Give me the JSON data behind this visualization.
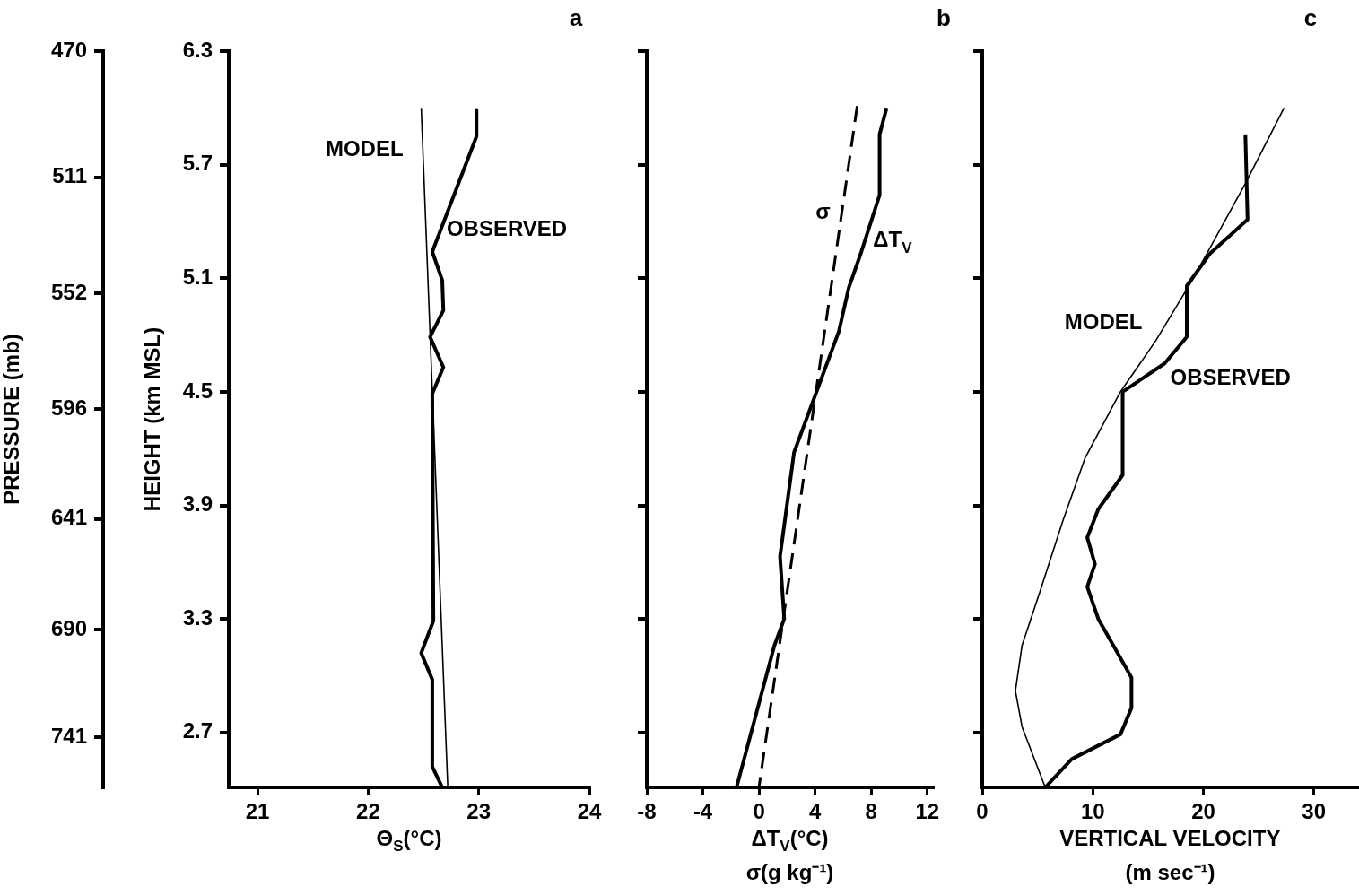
{
  "chart_data": [
    {
      "type": "line",
      "title": "a",
      "xlabel": "Θ$_{S}$(°C)",
      "ylabel": "HEIGHT (km MSL)",
      "y2label": "PRESSURE (mb)",
      "xlim": [
        20.74,
        24
      ],
      "xticks": [
        21,
        22,
        23,
        24
      ],
      "ylim": [
        2.41,
        6.3
      ],
      "yticks": [
        2.7,
        3.3,
        3.9,
        4.5,
        5.1,
        5.7,
        6.3
      ],
      "y2lim": [
        766,
        470
      ],
      "y2ticks": [
        741,
        690,
        641,
        596,
        552,
        511,
        470
      ],
      "log": "y2",
      "grid": false,
      "legend": false,
      "marker": "none",
      "series": [
        {
          "name": "MODEL",
          "color": "#000000",
          "line_style": "solid",
          "x": [
            22.48,
            22.72
          ],
          "values": [
            6.0,
            2.41
          ]
        },
        {
          "name": "OBSERVED",
          "color": "#000000",
          "line_style": "solid",
          "x": [
            22.98,
            22.98,
            22.58,
            22.67,
            22.68,
            22.56,
            22.68,
            22.58,
            22.59,
            22.48,
            22.58,
            22.58,
            22.67
          ],
          "values": [
            5.99,
            5.85,
            5.24,
            5.09,
            4.93,
            4.79,
            4.63,
            4.49,
            3.29,
            3.12,
            2.98,
            2.52,
            2.41
          ]
        }
      ]
    },
    {
      "type": "line",
      "title": "b",
      "xlabel": "ΔT$_{V}$(°C)\nσ(g kg⁻¹)",
      "xlim": [
        -8,
        12.4
      ],
      "xticks": [
        -8,
        -4,
        0,
        4,
        8,
        12
      ],
      "ylim": [
        2.41,
        6.3
      ],
      "yticks": [
        2.7,
        3.3,
        3.9,
        4.5,
        5.1,
        5.7,
        6.3
      ],
      "tick_labels": "x",
      "grid": false,
      "legend": false,
      "marker": "none",
      "series": [
        {
          "name": "σ",
          "color": "#000000",
          "line_style": "dashed",
          "x": [
            7.0,
            0.0
          ],
          "values": [
            6.01,
            2.41
          ]
        },
        {
          "name": "ΔT$_{V}$",
          "color": "#000000",
          "line_style": "solid",
          "x": [
            9.1,
            8.6,
            8.6,
            7.3,
            6.4,
            5.7,
            2.5,
            1.5,
            1.8,
            1.1,
            -1.6
          ],
          "values": [
            6.0,
            5.86,
            5.54,
            5.24,
            5.05,
            4.82,
            4.18,
            3.63,
            3.3,
            3.16,
            2.41
          ]
        }
      ]
    },
    {
      "type": "line",
      "title": "c",
      "xlabel": "VERTICAL VELOCITY\n(m sec⁻¹)",
      "xlim": [
        0,
        34
      ],
      "xticks": [
        0,
        10,
        20,
        30
      ],
      "ylim": [
        2.41,
        6.3
      ],
      "yticks": [
        2.7,
        3.3,
        3.9,
        4.5,
        5.1,
        5.7,
        6.3
      ],
      "tick_labels": "x",
      "grid": false,
      "legend": false,
      "marker": "none",
      "series": [
        {
          "name": "MODEL",
          "color": "#000000",
          "line_style": "solid",
          "x": [
            27.3,
            23.8,
            19.0,
            15.7,
            12.5,
            9.3,
            7.3,
            5.2,
            3.6,
            3.0,
            3.6,
            5.7
          ],
          "values": [
            6.0,
            5.6,
            5.09,
            4.77,
            4.5,
            4.15,
            3.82,
            3.44,
            3.16,
            2.92,
            2.73,
            2.41
          ]
        },
        {
          "name": "OBSERVED",
          "color": "#000000",
          "line_style": "solid",
          "x": [
            23.8,
            24.0,
            20.6,
            18.5,
            18.5,
            16.5,
            12.7,
            12.7,
            10.5,
            9.5,
            10.2,
            9.5,
            10.5,
            13.5,
            13.5,
            12.5,
            8.1,
            5.7
          ],
          "values": [
            5.86,
            5.41,
            5.23,
            5.06,
            4.79,
            4.65,
            4.5,
            4.06,
            3.88,
            3.73,
            3.59,
            3.47,
            3.3,
            2.99,
            2.83,
            2.69,
            2.56,
            2.41
          ]
        }
      ]
    }
  ]
}
